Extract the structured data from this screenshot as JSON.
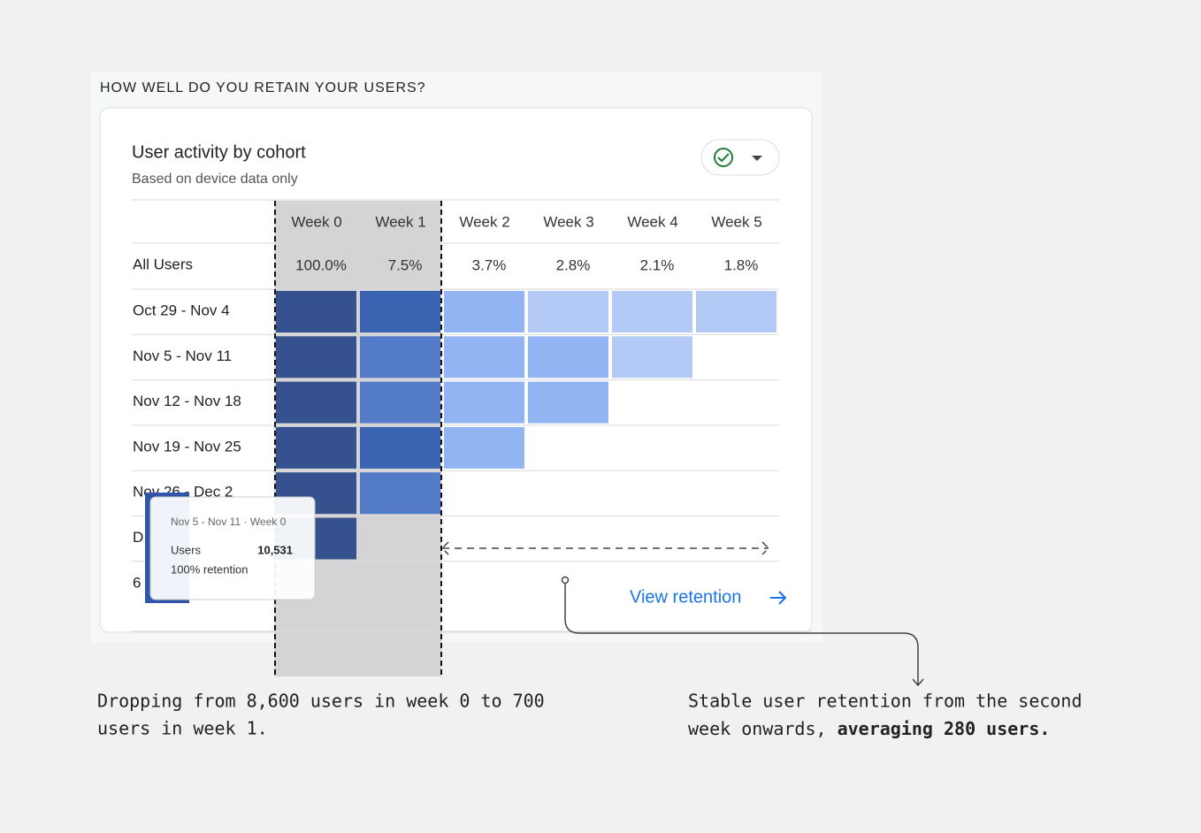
{
  "header": {
    "title": "HOW WELL DO YOU RETAIN YOUR USERS?"
  },
  "card": {
    "title": "User activity by cohort",
    "subtitle": "Based on device data only",
    "link": "View retention"
  },
  "table": {
    "columns": [
      "Week 0",
      "Week 1",
      "Week 2",
      "Week 3",
      "Week 4",
      "Week 5"
    ],
    "summary": {
      "label": "All Users",
      "values": [
        "100.0%",
        "7.5%",
        "3.7%",
        "2.8%",
        "2.1%",
        "1.8%"
      ]
    },
    "rows": [
      {
        "label": "Oct 29 - Nov 4",
        "colors": [
          "#35528f",
          "#3a63b1",
          "#93b4f3",
          "#b3c9f6",
          "#b3c9f6",
          "#b3c9f6"
        ]
      },
      {
        "label": "Nov 5 - Nov 11",
        "colors": [
          "#35528f",
          "#547bc8",
          "#93b4f3",
          "#93b4f3",
          "#b3c9f6"
        ]
      },
      {
        "label": "Nov 12 - Nov 18",
        "colors": [
          "#35528f",
          "#547bc8",
          "#93b4f3",
          "#93b4f3"
        ]
      },
      {
        "label": "Nov 19 - Nov 25",
        "colors": [
          "#35528f",
          "#3a63b1",
          "#93b4f3"
        ]
      },
      {
        "label": "Nov 26 - Dec 2",
        "colors": [
          "#35528f",
          "#547bc8"
        ]
      },
      {
        "label": "D",
        "colors": [
          "#35528f"
        ]
      },
      {
        "label": "6",
        "colors": []
      }
    ]
  },
  "tooltip": {
    "title": "Nov 5 - Nov 11 · Week 0",
    "metric": "Users",
    "value": "10,531",
    "note": "100% retention"
  },
  "annotations": {
    "left": [
      "Dropping from 8,600 users in week 0 to 700",
      "users in week 1."
    ],
    "right": {
      "line1": "Stable user retention from the second",
      "line2": "week onwards, ",
      "bold": "averaging 280 users."
    }
  }
}
